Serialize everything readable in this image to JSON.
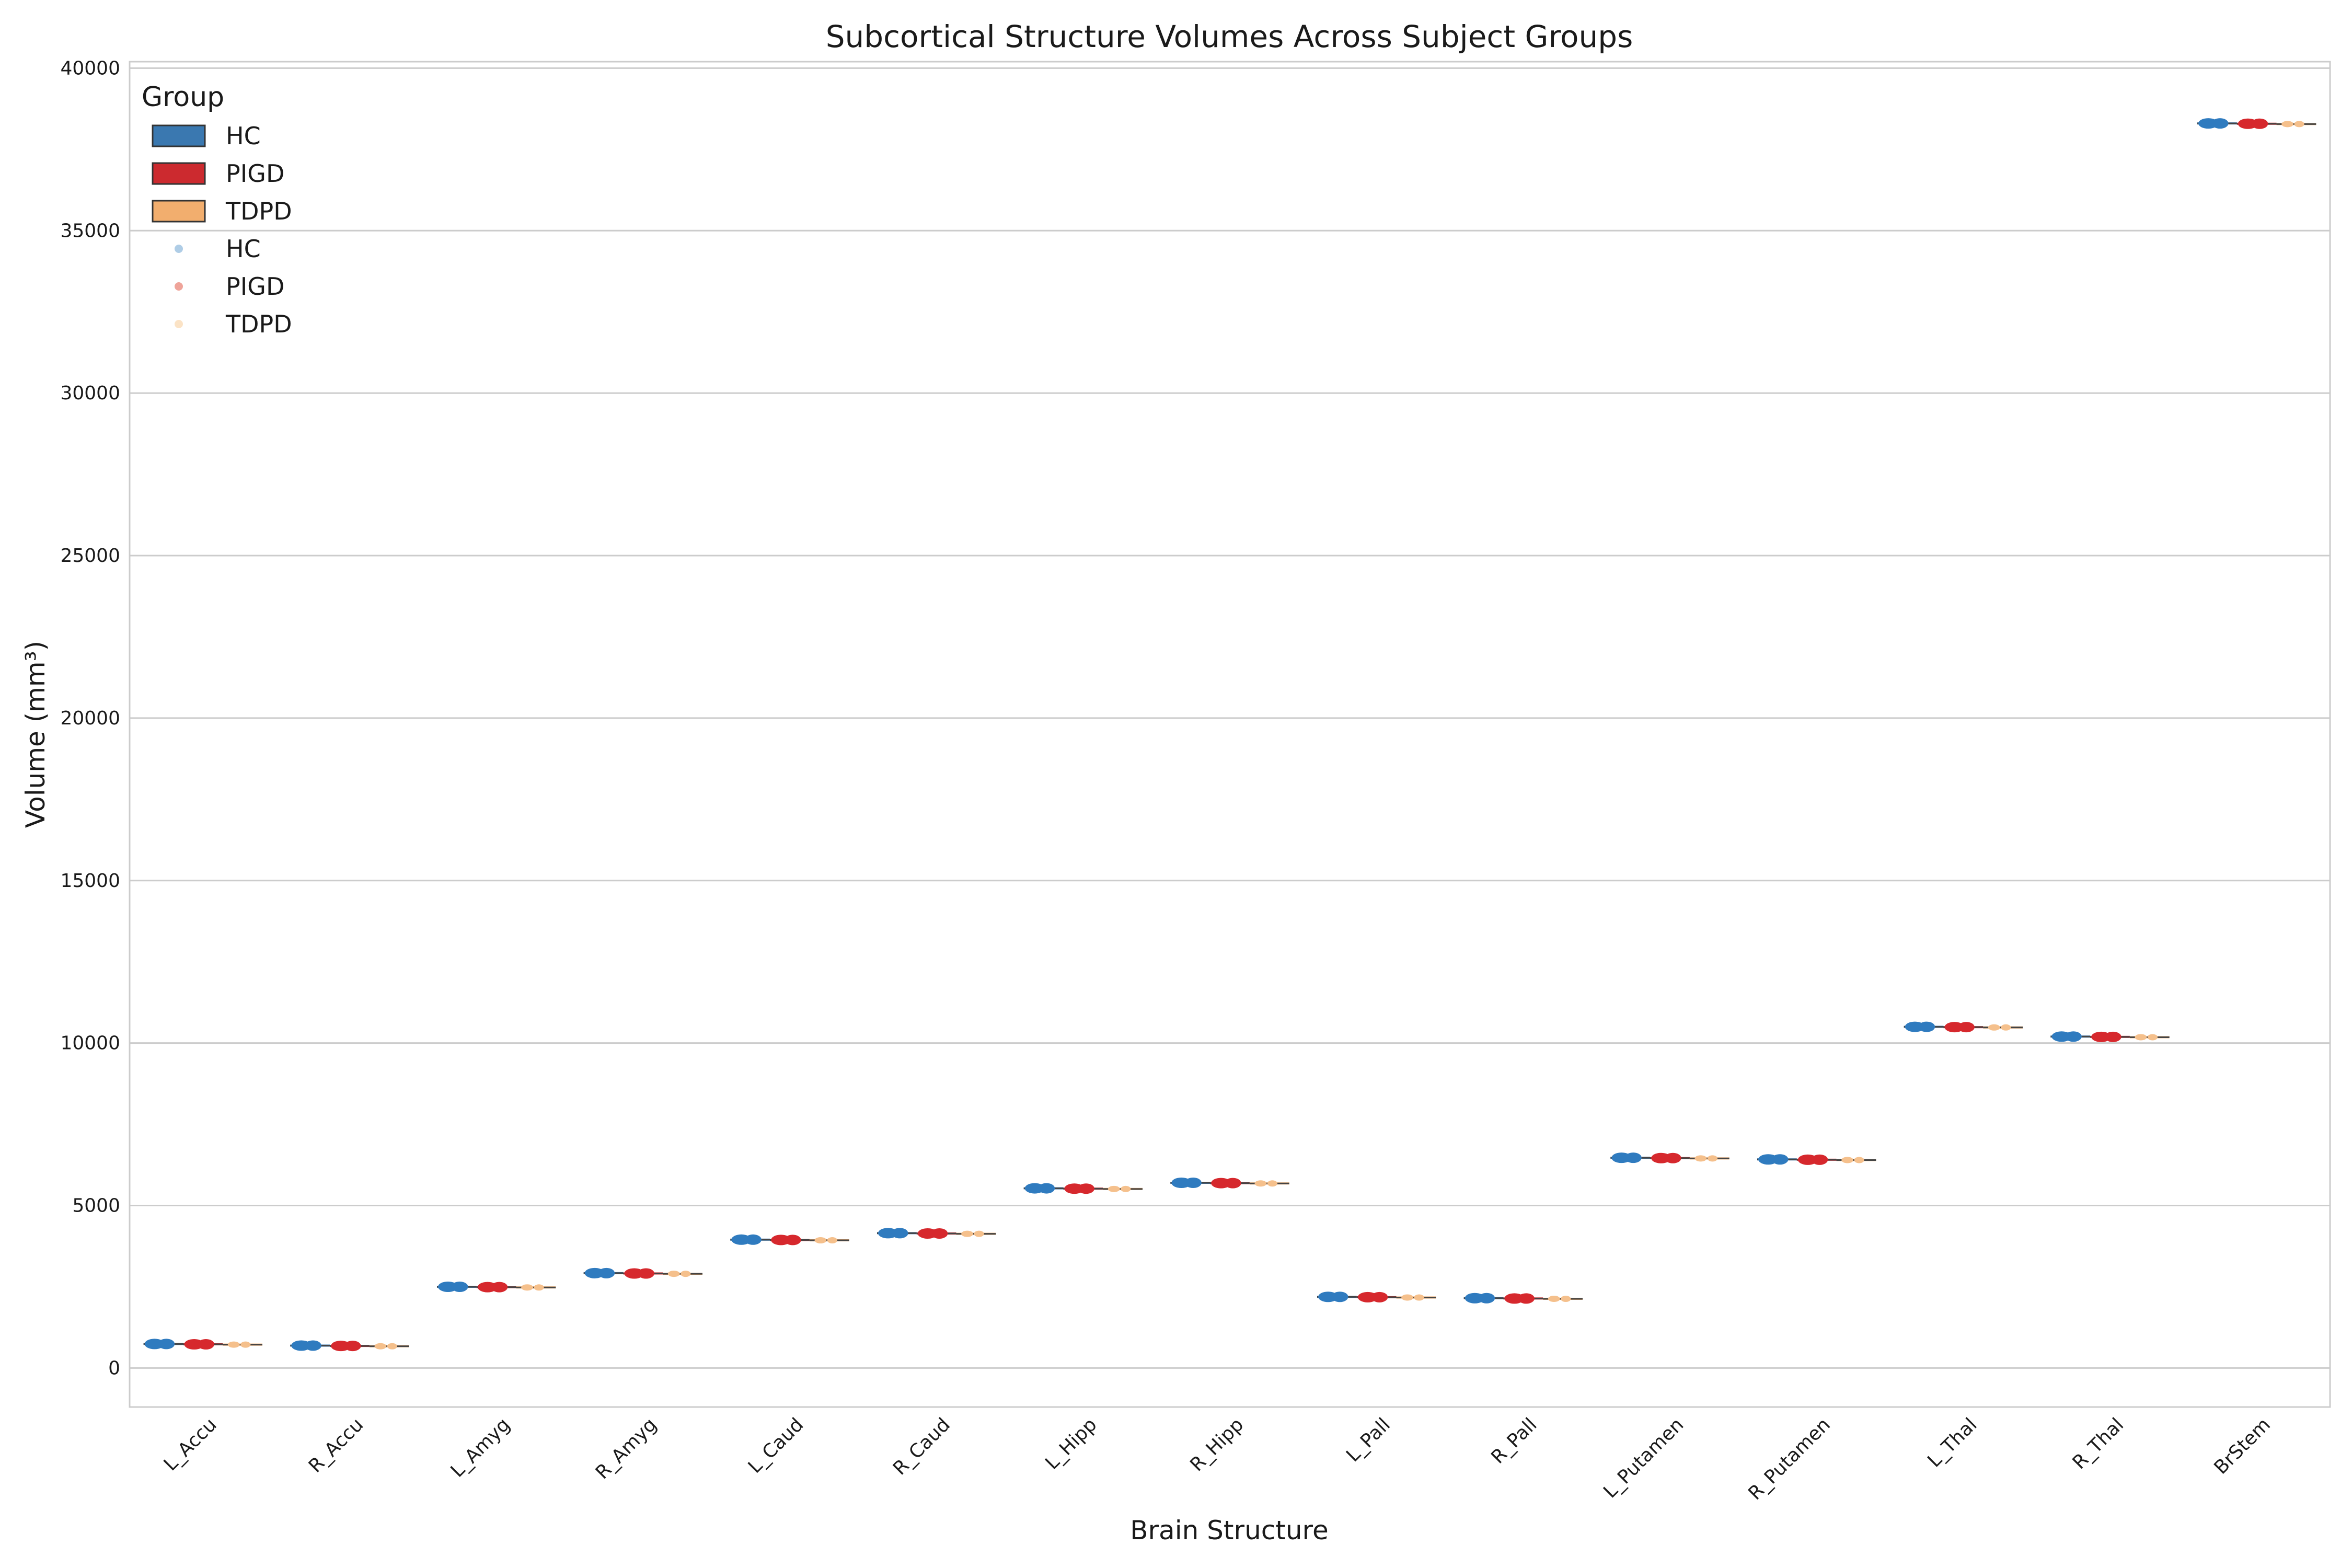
{
  "chart_data": {
    "type": "box",
    "title": "Subcortical Structure Volumes Across Subject Groups",
    "xlabel": "Brain Structure",
    "ylabel": "Volume (mm³)",
    "ylim": [
      -1200,
      40200
    ],
    "yticks": [
      0,
      5000,
      10000,
      15000,
      20000,
      25000,
      30000,
      35000,
      40000
    ],
    "ytick_labels": [
      "0",
      "5000",
      "10000",
      "15000",
      "20000",
      "25000",
      "30000",
      "35000",
      "40000"
    ],
    "grid": true,
    "legend_placement": "top-left",
    "legend_title": "Group",
    "legend_entries": [
      {
        "label": "HC",
        "kind": "box",
        "color": "#3A78B0"
      },
      {
        "label": "PIGD",
        "kind": "box",
        "color": "#CC2A2F"
      },
      {
        "label": "TDPD",
        "kind": "box",
        "color": "#F2AE6E"
      },
      {
        "label": "HC",
        "kind": "point",
        "color": "#AFCDE6"
      },
      {
        "label": "PIGD",
        "kind": "point",
        "color": "#EFA49A"
      },
      {
        "label": "TDPD",
        "kind": "point",
        "color": "#FBE3C6"
      }
    ],
    "categories": [
      "L_Accu",
      "R_Accu",
      "L_Amyg",
      "R_Amyg",
      "L_Caud",
      "R_Caud",
      "L_Hipp",
      "R_Hipp",
      "L_Pall",
      "R_Pall",
      "L_Putamen",
      "R_Putamen",
      "L_Thal",
      "R_Thal",
      "BrStem"
    ],
    "series": [
      {
        "name": "HC",
        "color": "#3A78B0",
        "point_color": "#2F7BBF",
        "values": [
          740,
          690,
          2500,
          2920,
          3950,
          4150,
          5530,
          5700,
          2190,
          2150,
          6470,
          6420,
          10500,
          10200,
          38300
        ]
      },
      {
        "name": "PIGD",
        "color": "#CC2A2F",
        "point_color": "#D6282D",
        "values": [
          730,
          680,
          2490,
          2910,
          3940,
          4140,
          5520,
          5690,
          2180,
          2140,
          6460,
          6410,
          10490,
          10190,
          38290
        ]
      },
      {
        "name": "TDPD",
        "color": "#F2AE6E",
        "point_color": "#F5C08C",
        "values": [
          720,
          670,
          2480,
          2900,
          3930,
          4130,
          5510,
          5680,
          2170,
          2130,
          6450,
          6400,
          10480,
          10180,
          38280
        ]
      }
    ]
  }
}
